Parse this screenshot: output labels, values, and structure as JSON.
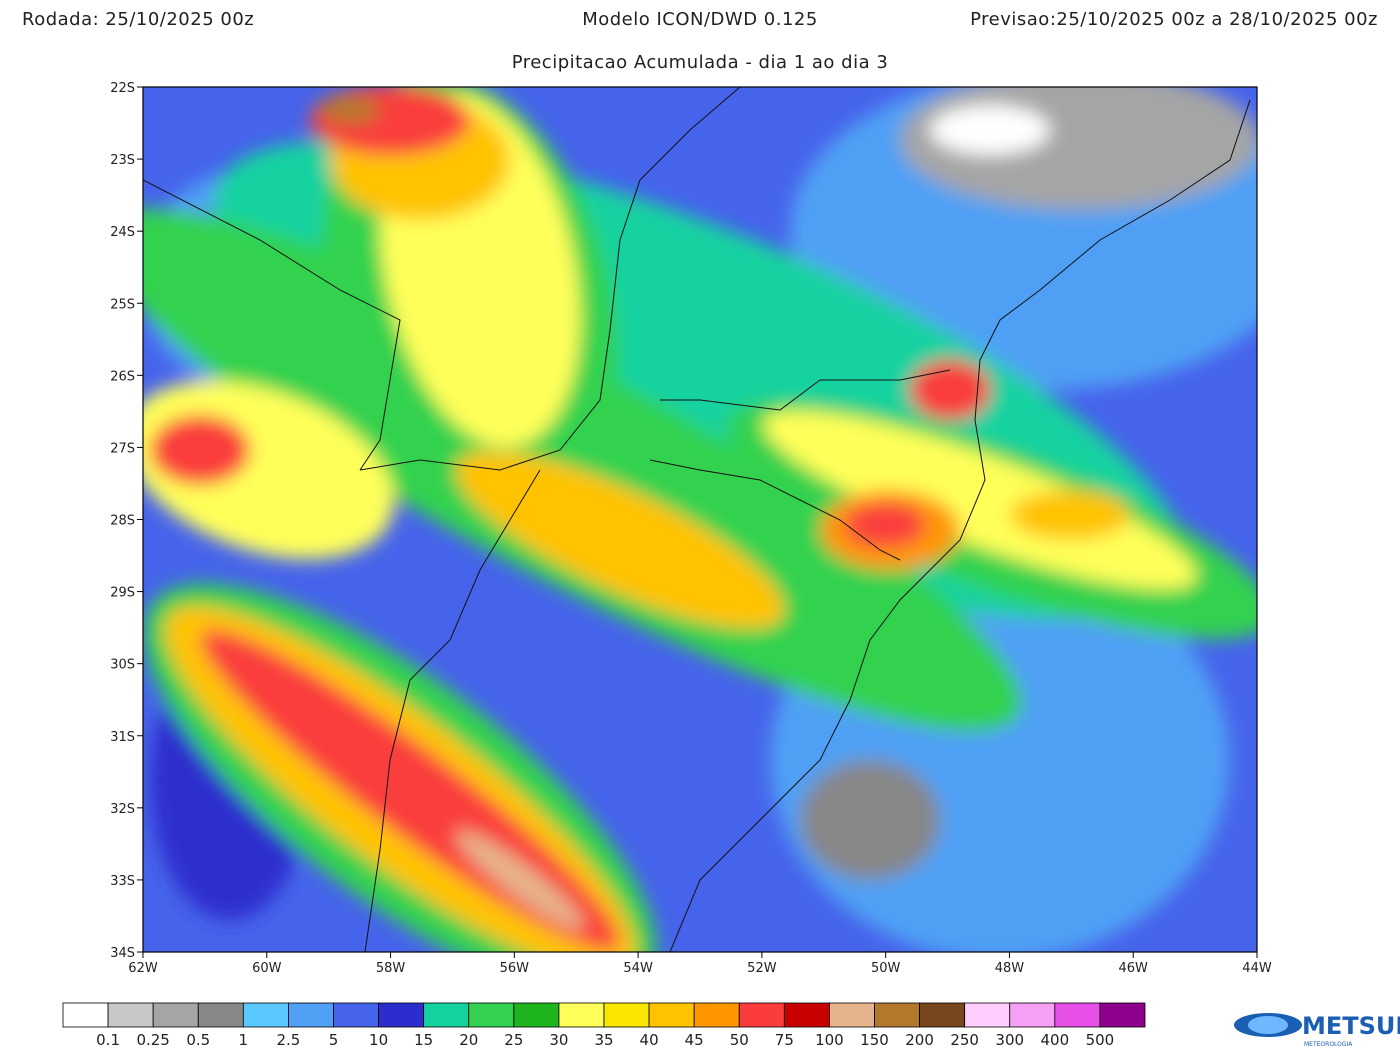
{
  "header": {
    "run": "Rodada: 25/10/2025 00z",
    "model": "Modelo ICON/DWD 0.125",
    "forecast": "Previsao:25/10/2025 00z a 28/10/2025 00z"
  },
  "title": "Precipitacao Acumulada - dia 1 ao dia 3",
  "map": {
    "lat_labels": [
      "22S",
      "23S",
      "24S",
      "25S",
      "26S",
      "27S",
      "28S",
      "29S",
      "30S",
      "31S",
      "32S",
      "33S",
      "34S"
    ],
    "lon_labels": [
      "62W",
      "60W",
      "58W",
      "56W",
      "54W",
      "52W",
      "50W",
      "48W",
      "46W",
      "44W"
    ]
  },
  "legend": {
    "colors": [
      "#ffffff",
      "#c8c8c8",
      "#a5a5a5",
      "#878787",
      "#5ac8ff",
      "#50a0f5",
      "#4664eb",
      "#2d2dcd",
      "#14d2a0",
      "#32d250",
      "#1eb41e",
      "#ffff5a",
      "#fae600",
      "#ffc300",
      "#ff9600",
      "#fa3c3c",
      "#c80000",
      "#e6b48c",
      "#b4782d",
      "#78461e",
      "#ffcdff",
      "#f5a0f5",
      "#e650e6",
      "#8c008c"
    ],
    "labels": [
      "0.1",
      "0.25",
      "0.5",
      "1",
      "2.5",
      "5",
      "10",
      "15",
      "20",
      "25",
      "30",
      "35",
      "40",
      "45",
      "50",
      "75",
      "100",
      "150",
      "200",
      "250",
      "300",
      "400",
      "500"
    ]
  },
  "logo": {
    "name": "METSUL",
    "tagline": "METEOROLOGIA"
  }
}
